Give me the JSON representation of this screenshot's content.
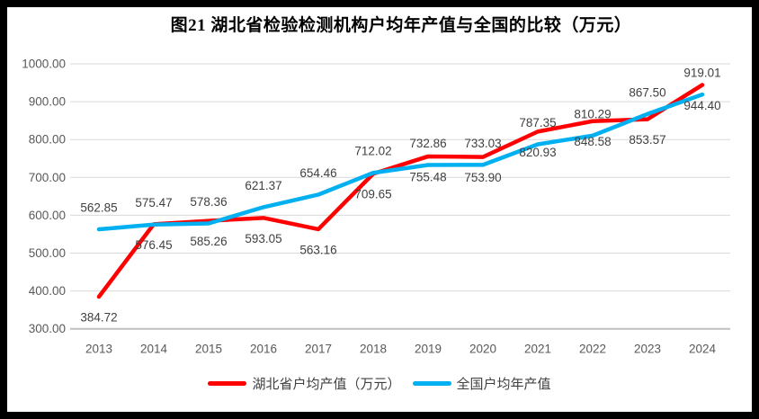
{
  "title": "图21 湖北省检验检测机构户均年产值与全国的比较（万元）",
  "chart_data": {
    "type": "line",
    "title": "图21 湖北省检验检测机构户均年产值与全国的比较（万元）",
    "categories": [
      "2013",
      "2014",
      "2015",
      "2016",
      "2017",
      "2018",
      "2019",
      "2020",
      "2021",
      "2022",
      "2023",
      "2024"
    ],
    "series": [
      {
        "key": "hubei",
        "name": "湖北省户均产值（万元）",
        "color": "#FF0000",
        "label_position": "below",
        "values": [
          384.72,
          576.45,
          585.26,
          593.05,
          563.16,
          709.65,
          755.48,
          753.9,
          820.93,
          848.58,
          853.57,
          944.4
        ]
      },
      {
        "key": "national",
        "name": "全国户均年产值",
        "color": "#00B0F0",
        "label_position": "above",
        "values": [
          562.85,
          575.47,
          578.36,
          621.37,
          654.46,
          712.02,
          732.86,
          733.03,
          787.35,
          810.29,
          867.5,
          919.01
        ]
      }
    ],
    "xlabel": "",
    "ylabel": "",
    "ylim": [
      300,
      1000
    ],
    "y_tick_step": 100,
    "y_tick_labels": [
      "300.00",
      "400.00",
      "500.00",
      "600.00",
      "700.00",
      "800.00",
      "900.00",
      "1000.00"
    ],
    "value_decimals": 2,
    "grid": true,
    "data_labels": true,
    "legend_position": "bottom"
  },
  "style": {
    "background": "#FFFFFF",
    "frame_color": "#000000",
    "grid_color": "#D9D9D9",
    "axis_line_color": "#BFBFBF",
    "tick_label_color": "#595959",
    "data_label_color": "#404040",
    "title_color": "#000000",
    "legend_text_color": "#404040"
  }
}
